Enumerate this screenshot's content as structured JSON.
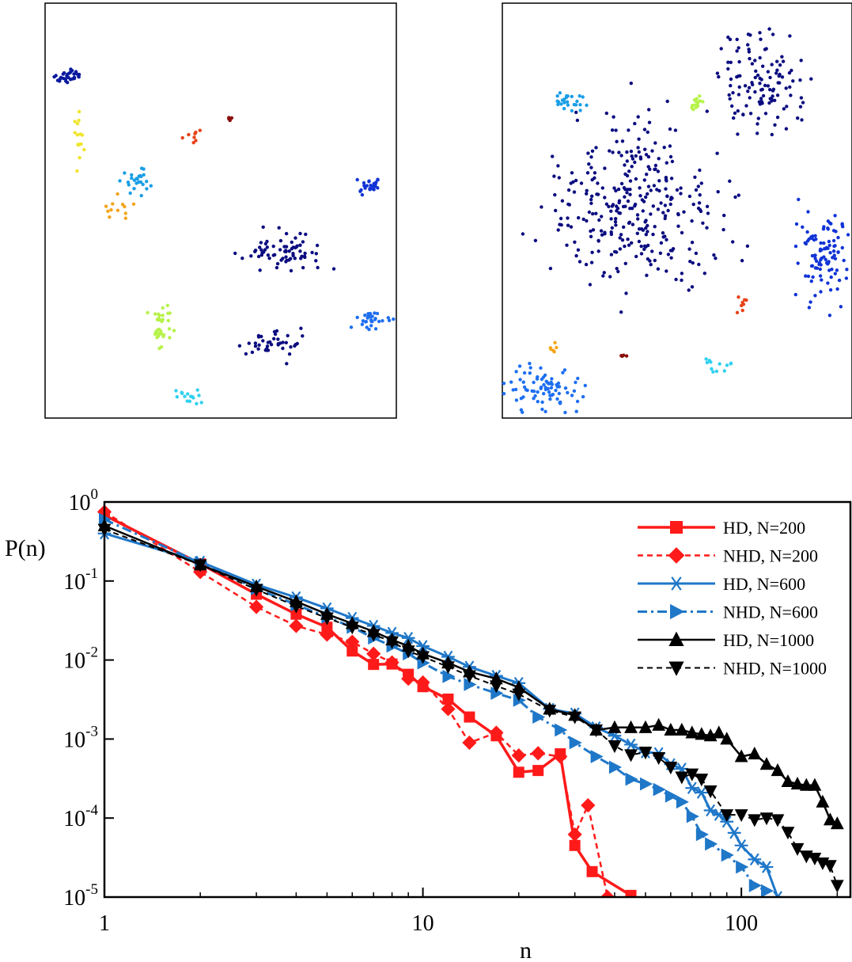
{
  "snapshots": [
    {
      "name": "left-snapshot",
      "clusters": [
        {
          "c": "#0a1a9e",
          "n": 30
        },
        {
          "c": "#1133d6",
          "n": 25
        },
        {
          "c": "#1e6ff0",
          "n": 30
        },
        {
          "c": "#0b0c80",
          "n": 70
        },
        {
          "c": "#0b0c80",
          "n": 40
        },
        {
          "c": "#1a9ee6",
          "n": 25
        },
        {
          "c": "#2fd1f0",
          "n": 15
        },
        {
          "c": "#b6f24a",
          "n": 35
        },
        {
          "c": "#f0e52a",
          "n": 15
        },
        {
          "c": "#f5a41a",
          "n": 12
        },
        {
          "c": "#e8421a",
          "n": 8
        },
        {
          "c": "#8a0b0b",
          "n": 4
        }
      ]
    },
    {
      "name": "right-snapshot",
      "clusters": [
        {
          "c": "#0b0c80",
          "n": 320
        },
        {
          "c": "#0b0c80",
          "n": 120
        },
        {
          "c": "#1133d6",
          "n": 100
        },
        {
          "c": "#1e6ff0",
          "n": 80
        },
        {
          "c": "#1a9ee6",
          "n": 25
        },
        {
          "c": "#2fd1f0",
          "n": 12
        },
        {
          "c": "#b6f24a",
          "n": 18
        },
        {
          "c": "#e8421a",
          "n": 8
        },
        {
          "c": "#f5a41a",
          "n": 6
        },
        {
          "c": "#8a0b0b",
          "n": 4
        }
      ]
    }
  ],
  "chart_data": {
    "type": "line",
    "title": "",
    "xlabel": "n",
    "ylabel": "P(n)",
    "xscale": "log",
    "yscale": "log",
    "xlim": [
      1,
      220
    ],
    "ylim": [
      1e-05,
      1
    ],
    "xticks": [
      {
        "v": 1,
        "label": "1"
      },
      {
        "v": 10,
        "label": "10"
      },
      {
        "v": 100,
        "label": "100"
      }
    ],
    "yticks": [
      {
        "v": 1,
        "base": "10",
        "exp": "0"
      },
      {
        "v": 0.1,
        "base": "10",
        "exp": "-1"
      },
      {
        "v": 0.01,
        "base": "10",
        "exp": "-2"
      },
      {
        "v": 0.001,
        "base": "10",
        "exp": "-3"
      },
      {
        "v": 0.0001,
        "base": "10",
        "exp": "-4"
      },
      {
        "v": 1e-05,
        "base": "10",
        "exp": "-5"
      }
    ],
    "legend_position": "top-right",
    "series": [
      {
        "name": "HD, N=200",
        "color": "#ff1a1a",
        "dash": "solid",
        "marker": "square",
        "width": 3.5,
        "x": [
          1,
          2,
          3,
          4,
          5,
          6,
          7,
          8,
          9,
          10,
          12,
          14,
          17,
          20,
          23,
          27,
          30,
          34,
          45
        ],
        "y": [
          0.68,
          0.165,
          0.068,
          0.038,
          0.026,
          0.013,
          0.0088,
          0.0089,
          0.0066,
          0.0046,
          0.0032,
          0.0019,
          0.0011,
          0.00038,
          0.0004,
          0.00065,
          4.5e-05,
          2.1e-05,
          1.05e-05
        ]
      },
      {
        "name": "NHD, N=200",
        "color": "#ff1a1a",
        "dash": "dashed",
        "marker": "diamond",
        "width": 2.5,
        "x": [
          1,
          2,
          3,
          4,
          5,
          6,
          7,
          8,
          9,
          10,
          12,
          14,
          17,
          20,
          23,
          27,
          30,
          33,
          38
        ],
        "y": [
          0.75,
          0.13,
          0.047,
          0.027,
          0.021,
          0.017,
          0.012,
          0.0093,
          0.0058,
          0.0052,
          0.0024,
          0.0009,
          0.0012,
          0.00062,
          0.00066,
          0.0006,
          6.2e-05,
          0.000145,
          1e-05
        ]
      },
      {
        "name": "HD, N=600",
        "color": "#1f77c8",
        "dash": "solid",
        "marker": "star",
        "width": 3,
        "x": [
          1,
          2,
          3,
          4,
          5,
          6,
          7,
          8,
          9,
          10,
          12,
          14,
          17,
          20,
          25,
          30,
          35,
          40,
          45,
          50,
          55,
          60,
          65,
          70,
          75,
          80,
          85,
          90,
          95,
          100,
          110,
          120,
          130
        ],
        "y": [
          0.4,
          0.175,
          0.09,
          0.062,
          0.045,
          0.034,
          0.027,
          0.022,
          0.019,
          0.015,
          0.011,
          0.0082,
          0.0063,
          0.0051,
          0.0024,
          0.0021,
          0.0014,
          0.0011,
          0.00085,
          0.00068,
          0.00066,
          0.00048,
          0.00042,
          0.00024,
          0.00021,
          0.000125,
          0.00011,
          9e-05,
          6.5e-05,
          4.5e-05,
          3e-05,
          2.4e-05,
          1e-05
        ]
      },
      {
        "name": "NHD, N=600",
        "color": "#1f77c8",
        "dash": "dashdot",
        "marker": "triangle-right",
        "width": 3,
        "x": [
          1,
          2,
          3,
          4,
          5,
          6,
          7,
          8,
          9,
          10,
          12,
          14,
          17,
          20,
          23,
          27,
          30,
          35,
          40,
          45,
          50,
          55,
          60,
          65,
          70,
          75,
          80,
          90,
          100,
          110,
          120
        ],
        "y": [
          0.6,
          0.17,
          0.08,
          0.05,
          0.035,
          0.026,
          0.019,
          0.015,
          0.012,
          0.0092,
          0.0062,
          0.0049,
          0.0038,
          0.0031,
          0.0019,
          0.0013,
          0.0009,
          0.0006,
          0.00044,
          0.00031,
          0.00027,
          0.00023,
          0.00019,
          0.00016,
          0.000105,
          6.2e-05,
          4.7e-05,
          3.4e-05,
          2.4e-05,
          1.4e-05,
          1.2e-05
        ]
      },
      {
        "name": "HD, N=1000",
        "color": "#000000",
        "dash": "solid",
        "marker": "triangle-up",
        "width": 2.5,
        "x": [
          1,
          2,
          3,
          4,
          5,
          6,
          7,
          8,
          9,
          10,
          12,
          14,
          17,
          20,
          25,
          30,
          35,
          40,
          45,
          50,
          55,
          60,
          65,
          70,
          75,
          80,
          85,
          90,
          100,
          110,
          120,
          130,
          140,
          150,
          160,
          170,
          180,
          190,
          200
        ],
        "y": [
          0.5,
          0.16,
          0.085,
          0.055,
          0.038,
          0.029,
          0.023,
          0.018,
          0.015,
          0.012,
          0.0092,
          0.0071,
          0.0058,
          0.0045,
          0.0024,
          0.002,
          0.0013,
          0.0014,
          0.0014,
          0.0014,
          0.0015,
          0.0013,
          0.0013,
          0.0012,
          0.00115,
          0.0011,
          0.0012,
          0.001,
          0.0006,
          0.00065,
          0.00048,
          0.0004,
          0.00029,
          0.00027,
          0.00026,
          0.00026,
          0.00016,
          9.5e-05,
          8.5e-05
        ]
      },
      {
        "name": "NHD, N=1000",
        "color": "#000000",
        "dash": "dashed",
        "marker": "triangle-down",
        "width": 2,
        "x": [
          1,
          2,
          3,
          4,
          5,
          6,
          7,
          8,
          9,
          10,
          12,
          14,
          17,
          20,
          25,
          30,
          35,
          40,
          45,
          50,
          55,
          60,
          65,
          70,
          75,
          80,
          90,
          100,
          110,
          120,
          130,
          140,
          150,
          160,
          170,
          180,
          190,
          200
        ],
        "y": [
          0.45,
          0.16,
          0.078,
          0.048,
          0.034,
          0.026,
          0.021,
          0.017,
          0.013,
          0.011,
          0.0082,
          0.0063,
          0.0047,
          0.0037,
          0.0023,
          0.0019,
          0.0013,
          0.00082,
          0.00063,
          0.00068,
          0.00058,
          0.00044,
          0.00033,
          0.00036,
          0.00031,
          0.00022,
          0.00011,
          0.00011,
          9.5e-05,
          0.0001,
          9.5e-05,
          6.6e-05,
          4.1e-05,
          3.3e-05,
          3.1e-05,
          2.7e-05,
          2.5e-05,
          1.4e-05
        ]
      }
    ]
  }
}
